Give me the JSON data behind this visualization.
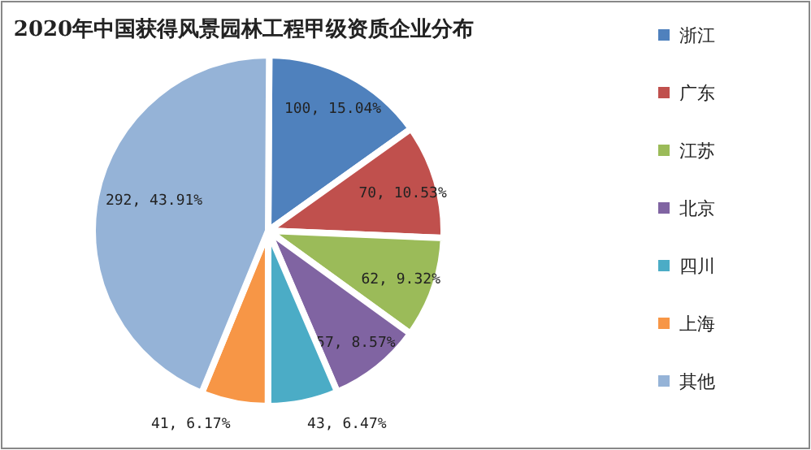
{
  "chart_data": {
    "type": "pie",
    "title": "2020年中国获得风景园林工程甲级资质企业分布",
    "categories": [
      "浙江",
      "广东",
      "江苏",
      "北京",
      "四川",
      "上海",
      "其他"
    ],
    "values": [
      100,
      70,
      62,
      57,
      43,
      41,
      292
    ],
    "colors": [
      "#4f81bd",
      "#c0504d",
      "#9bbb59",
      "#8064a2",
      "#4bacc6",
      "#f79646",
      "#95b3d7"
    ],
    "value_labels": [
      "100, 15.04%",
      "70, 10.53%",
      "62, 9.32%",
      "57, 8.57%",
      "43, 6.47%",
      "41, 6.17%",
      "292, 43.91%"
    ],
    "legend": "right"
  }
}
